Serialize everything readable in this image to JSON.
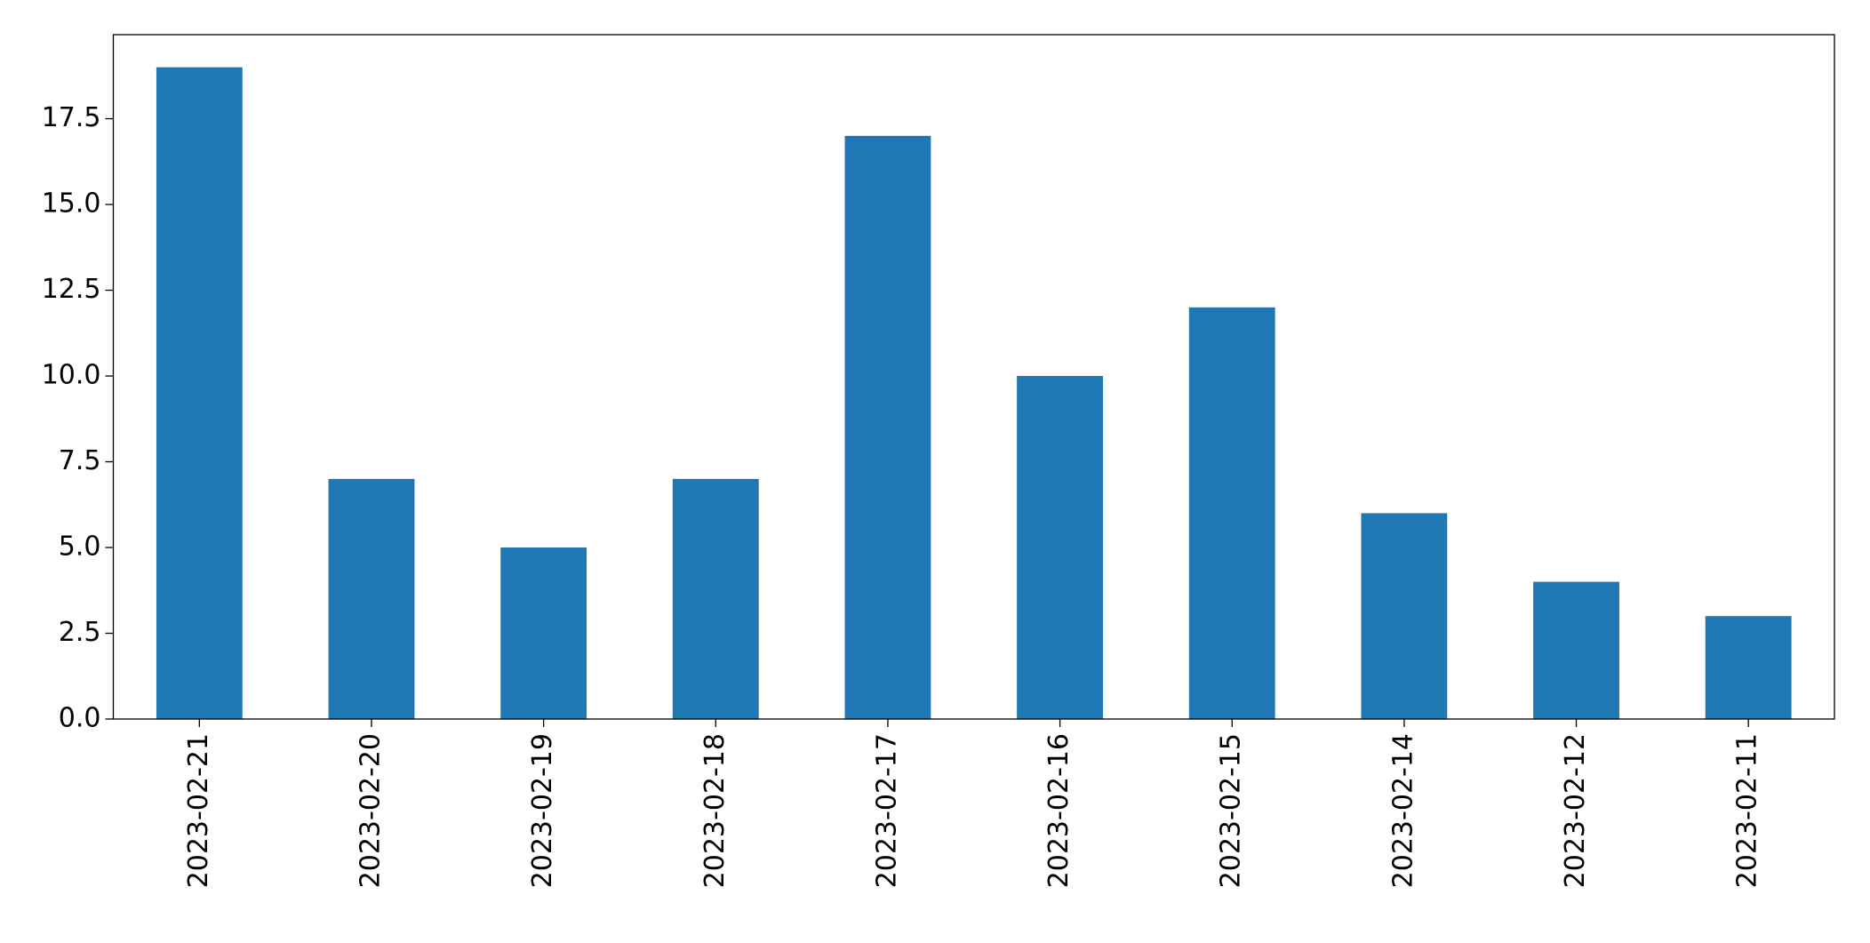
{
  "chart_data": {
    "type": "bar",
    "categories": [
      "2023-02-21",
      "2023-02-20",
      "2023-02-19",
      "2023-02-18",
      "2023-02-17",
      "2023-02-16",
      "2023-02-15",
      "2023-02-14",
      "2023-02-12",
      "2023-02-11"
    ],
    "values": [
      19,
      7,
      5,
      7,
      17,
      10,
      12,
      6,
      4,
      3
    ],
    "color": "#1f77b4",
    "ylim": [
      0,
      19.95
    ],
    "yticks": [
      {
        "value": 0,
        "label": "0.0"
      },
      2.5,
      {
        "value": 5,
        "label": "5.0"
      },
      7.5,
      {
        "value": 10,
        "label": "10.0"
      },
      12.5,
      {
        "value": 15,
        "label": "15.0"
      },
      17.5
    ],
    "grid": false
  }
}
